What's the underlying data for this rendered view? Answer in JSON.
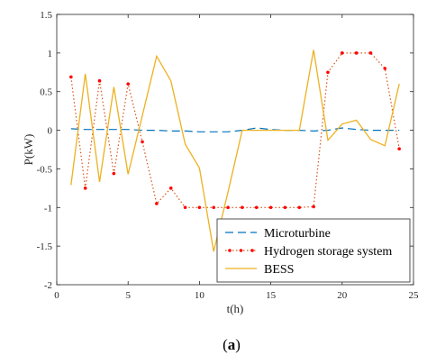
{
  "chart_data": {
    "type": "line",
    "xlabel": "t(h)",
    "ylabel": "P(kW)",
    "xlim": [
      0,
      25
    ],
    "ylim": [
      -2,
      1.5
    ],
    "xticks": [
      0,
      5,
      10,
      15,
      20,
      25
    ],
    "yticks": [
      1.5,
      1,
      0.5,
      0,
      -0.5,
      -1,
      -1.5,
      -2
    ],
    "grid": false,
    "legend_position": "bottom-right",
    "x": [
      1,
      2,
      3,
      4,
      5,
      6,
      7,
      8,
      9,
      10,
      11,
      12,
      13,
      14,
      15,
      16,
      17,
      18,
      19,
      20,
      21,
      22,
      23,
      24
    ],
    "series": [
      {
        "name": "Microturbine",
        "style": "dashed",
        "color": "#0072BD",
        "values": [
          0.02,
          0.01,
          0.01,
          0.01,
          0.01,
          0.0,
          0.0,
          -0.01,
          -0.01,
          -0.02,
          -0.02,
          -0.02,
          0.0,
          0.03,
          0.01,
          0.0,
          0.0,
          -0.01,
          0.0,
          0.03,
          0.01,
          0.0,
          0.0,
          0.0
        ]
      },
      {
        "name": "Hydrogen storage system",
        "style": "dotted",
        "color": "#D95319",
        "marker_color": "#FF0000",
        "values": [
          0.69,
          -0.75,
          0.64,
          -0.56,
          0.6,
          -0.15,
          -0.95,
          -0.75,
          -1.0,
          -1.0,
          -1.0,
          -1.0,
          -1.0,
          -1.0,
          -1.0,
          -1.0,
          -1.0,
          -0.99,
          0.75,
          1.0,
          1.0,
          1.0,
          0.8,
          -0.24
        ]
      },
      {
        "name": "BESS",
        "style": "solid",
        "color": "#EDB120",
        "values": [
          -0.71,
          0.73,
          -0.67,
          0.56,
          -0.57,
          0.19,
          0.96,
          0.64,
          -0.18,
          -0.49,
          -1.57,
          -0.8,
          0.0,
          0.0,
          0.0,
          0.0,
          0.0,
          1.04,
          -0.13,
          0.08,
          0.13,
          -0.12,
          -0.2,
          0.6
        ]
      }
    ]
  },
  "caption": "(a)",
  "caption_label": "(",
  "caption_bold": "a",
  "caption_close": ")"
}
